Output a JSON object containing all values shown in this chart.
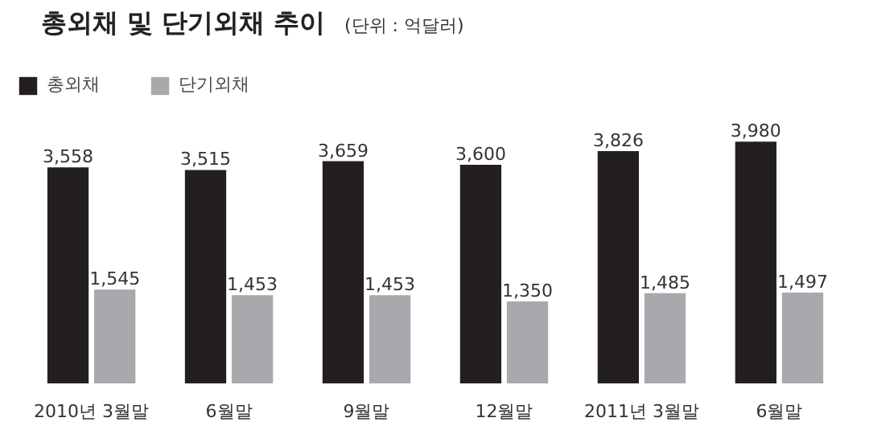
{
  "chart_data": {
    "type": "bar",
    "title": "총외채 및 단기외채 추이",
    "subtitle": "(단위 : 억달러)",
    "categories": [
      "2010년 3월말",
      "6월말",
      "9월말",
      "12월말",
      "2011년 3월말",
      "6월말"
    ],
    "series": [
      {
        "name": "총외채",
        "color": "#231f20",
        "values": [
          3558,
          3515,
          3659,
          3600,
          3826,
          3980
        ],
        "value_labels": [
          "3,558",
          "3,515",
          "3,659",
          "3,600",
          "3,826",
          "3,980"
        ]
      },
      {
        "name": "단기외채",
        "color": "#a7a9ac",
        "values": [
          1545,
          1453,
          1453,
          1350,
          1485,
          1497
        ],
        "value_labels": [
          "1,545",
          "1,453",
          "1,453",
          "1,350",
          "1,485",
          "1,497"
        ]
      }
    ],
    "legend": "top left",
    "grid": false
  }
}
